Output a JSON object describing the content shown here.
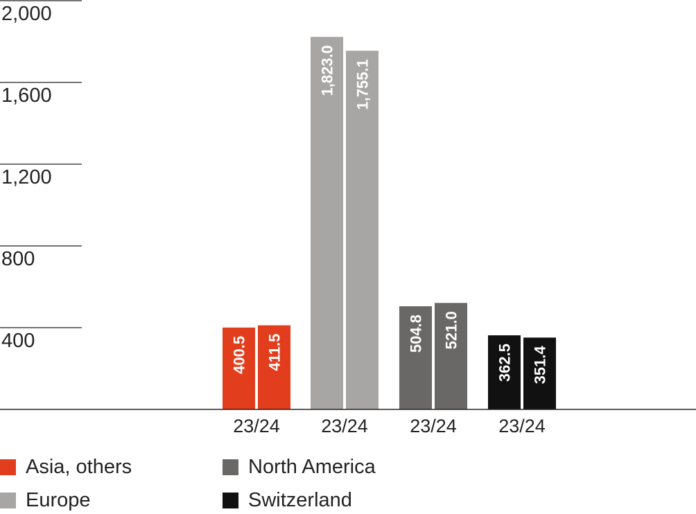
{
  "chart_data": {
    "type": "bar",
    "y_ticks": [
      "2,000",
      "1,600",
      "1,200",
      "800",
      "400"
    ],
    "y_tick_values": [
      2000,
      1600,
      1200,
      800,
      400
    ],
    "ylim": [
      0,
      2000
    ],
    "grid": false,
    "groups": [
      {
        "name": "Asia, others",
        "color": "#e23d1c",
        "category_label": "23/24",
        "bars": [
          {
            "value": 400.5,
            "label": "400.5"
          },
          {
            "value": 411.5,
            "label": "411.5"
          }
        ]
      },
      {
        "name": "Europe",
        "color": "#a8a6a4",
        "category_label": "23/24",
        "bars": [
          {
            "value": 1823.0,
            "label": "1,823.0"
          },
          {
            "value": 1755.1,
            "label": "1,755.1"
          }
        ]
      },
      {
        "name": "North America",
        "color": "#6a6867",
        "category_label": "23/24",
        "bars": [
          {
            "value": 504.8,
            "label": "504.8"
          },
          {
            "value": 521.0,
            "label": "521.0"
          }
        ]
      },
      {
        "name": "Switzerland",
        "color": "#111111",
        "category_label": "23/24",
        "bars": [
          {
            "value": 362.5,
            "label": "362.5"
          },
          {
            "value": 351.4,
            "label": "351.4"
          }
        ]
      }
    ],
    "legend_position": "bottom-left"
  },
  "legend": [
    {
      "label": "Asia, others",
      "color": "#e23d1c"
    },
    {
      "label": "Europe",
      "color": "#a8a6a4"
    },
    {
      "label": "North America",
      "color": "#6a6867"
    },
    {
      "label": "Switzerland",
      "color": "#111111"
    }
  ]
}
